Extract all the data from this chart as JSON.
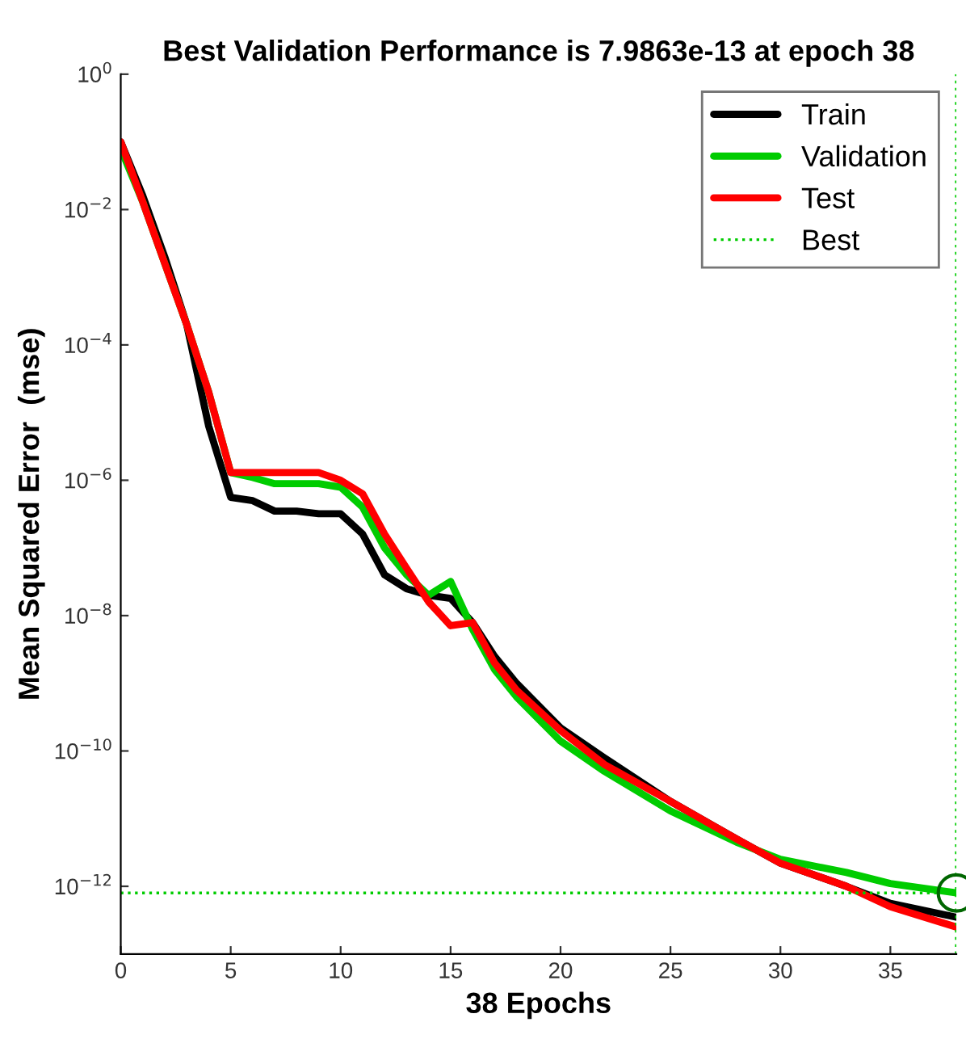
{
  "chart_data": {
    "type": "line",
    "title": "Best Validation Performance is 7.9863e-13 at epoch 38",
    "xlabel": "38 Epochs",
    "ylabel": "Mean Squared Error  (mse)",
    "log": "y",
    "xlim": [
      0,
      38
    ],
    "ylim": [
      1e-13,
      1
    ],
    "xticks": [
      0,
      5,
      10,
      15,
      20,
      25,
      30,
      35
    ],
    "yticks": [
      {
        "value": 1,
        "label": "10$^{0}$"
      },
      {
        "value": 0.01,
        "label": "10$^{−2}$"
      },
      {
        "value": 0.0001,
        "label": "10$^{−4}$"
      },
      {
        "value": 1e-06,
        "label": "10$^{−6}$"
      },
      {
        "value": 1e-08,
        "label": "10$^{−8}$"
      },
      {
        "value": 1e-10,
        "label": "10$^{−10}$"
      },
      {
        "value": 1e-12,
        "label": "10$^{−12}$"
      }
    ],
    "grid": false,
    "legend": "top right",
    "line_style": "solid",
    "marker": "none",
    "x": [
      0,
      1,
      2,
      3,
      4,
      5,
      6,
      7,
      8,
      9,
      10,
      11,
      12,
      13,
      14,
      15,
      16,
      17,
      18,
      20,
      22,
      25,
      28,
      30,
      33,
      35,
      38
    ],
    "series": [
      {
        "name": "Train",
        "color": "#000000",
        "values": [
          0.1,
          0.016,
          0.002,
          0.0002,
          6.3e-06,
          5.6e-07,
          5e-07,
          3.5e-07,
          3.5e-07,
          3.2e-07,
          3.2e-07,
          1.6e-07,
          4e-08,
          2.5e-08,
          2e-08,
          1.8e-08,
          7.9e-09,
          2.5e-09,
          1e-09,
          2.2e-10,
          7.9e-11,
          1.8e-11,
          5e-12,
          2.2e-12,
          1e-12,
          5.6e-13,
          3.5e-13
        ]
      },
      {
        "name": "Validation",
        "color": "#00cc00",
        "values": [
          0.079,
          0.013,
          0.0016,
          0.0002,
          2e-05,
          1.3e-06,
          1.1e-06,
          8.9e-07,
          8.9e-07,
          8.9e-07,
          7.9e-07,
          4e-07,
          1e-07,
          4e-08,
          2e-08,
          3.2e-08,
          6.3e-09,
          1.6e-09,
          6.3e-10,
          1.4e-10,
          5e-11,
          1.3e-11,
          4.5e-12,
          2.5e-12,
          1.6e-12,
          1.1e-12,
          7.9863e-13
        ]
      },
      {
        "name": "Test",
        "color": "#ff0000",
        "values": [
          0.1,
          0.013,
          0.0016,
          0.0002,
          2e-05,
          1.3e-06,
          1.3e-06,
          1.3e-06,
          1.3e-06,
          1.3e-06,
          1e-06,
          6.3e-07,
          1.6e-07,
          5e-08,
          1.6e-08,
          7.1e-09,
          7.9e-09,
          2e-09,
          7.9e-10,
          2e-10,
          6.3e-11,
          1.8e-11,
          5e-12,
          2.2e-12,
          1e-12,
          5e-13,
          2.5e-13
        ]
      },
      {
        "type": "scatter",
        "marker": "circle",
        "color": "#006600",
        "x": [
          38
        ],
        "values": [
          7.9863e-13
        ]
      }
    ],
    "ref_lines": [
      {
        "axis": "y",
        "value": 7.9863e-13,
        "label": "Best",
        "color": "#00cc00",
        "line_style": "dotted"
      },
      {
        "axis": "x",
        "value": 38,
        "label": null,
        "color": "#00cc00",
        "line_style": "dotted"
      }
    ]
  }
}
